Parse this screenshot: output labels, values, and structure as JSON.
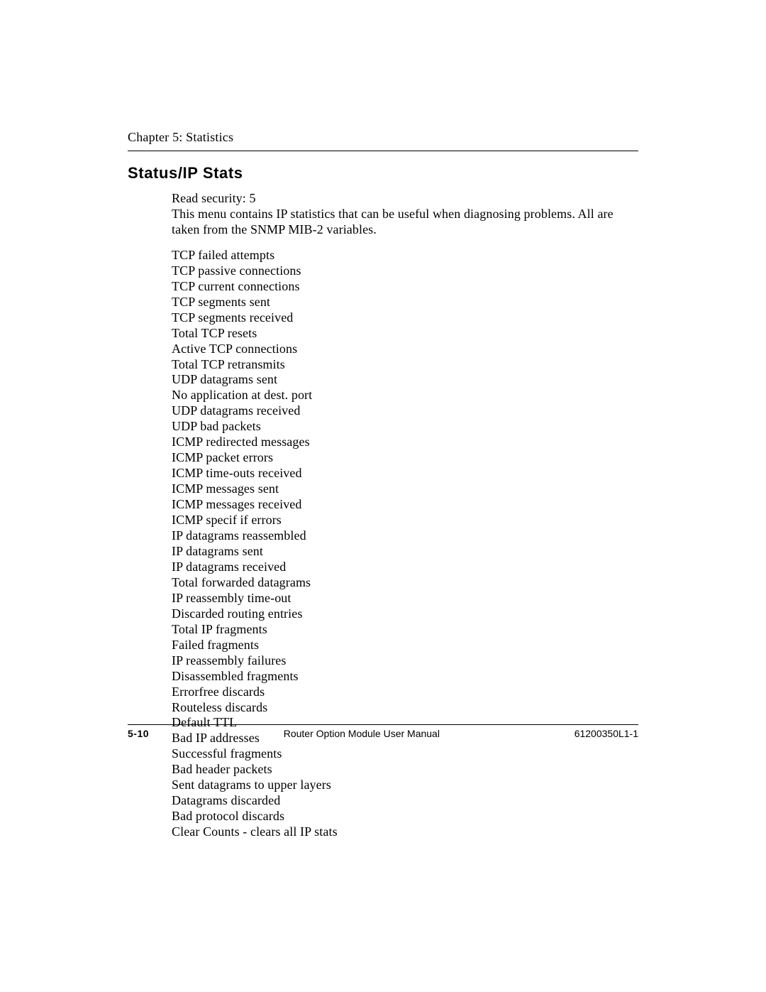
{
  "header": {
    "chapter_line": "Chapter 5:  Statistics"
  },
  "section": {
    "title": "Status/IP Stats",
    "intro_line1": "Read security: 5",
    "intro_line2": "This menu contains IP statistics that can be useful when diagnosing problems. All are taken from the SNMP MIB-2 variables.",
    "stats": [
      "TCP failed attempts",
      "TCP passive connections",
      "TCP current connections",
      "TCP segments sent",
      "TCP segments received",
      "Total TCP resets",
      "Active TCP connections",
      "Total TCP retransmits",
      "UDP datagrams sent",
      "No application at dest. port",
      "UDP datagrams received",
      "UDP bad packets",
      "ICMP redirected messages",
      "ICMP packet errors",
      "ICMP time-outs received",
      "ICMP messages sent",
      "ICMP messages received",
      "ICMP specif if errors",
      "IP datagrams reassembled",
      "IP datagrams sent",
      "IP datagrams received",
      "Total forwarded datagrams",
      "IP reassembly time-out",
      "Discarded routing entries",
      "Total IP fragments",
      "Failed fragments",
      "IP reassembly failures",
      "Disassembled fragments",
      "Errorfree discards",
      "Routeless discards",
      "Default TTL",
      "Bad IP addresses",
      "Successful fragments",
      "Bad header packets",
      "Sent datagrams to upper layers",
      "Datagrams discarded",
      "Bad protocol discards",
      "Clear Counts - clears all IP stats"
    ]
  },
  "footer": {
    "page_num": "5-10",
    "manual_title": "Router Option Module User Manual",
    "doc_number": "61200350L1-1"
  }
}
